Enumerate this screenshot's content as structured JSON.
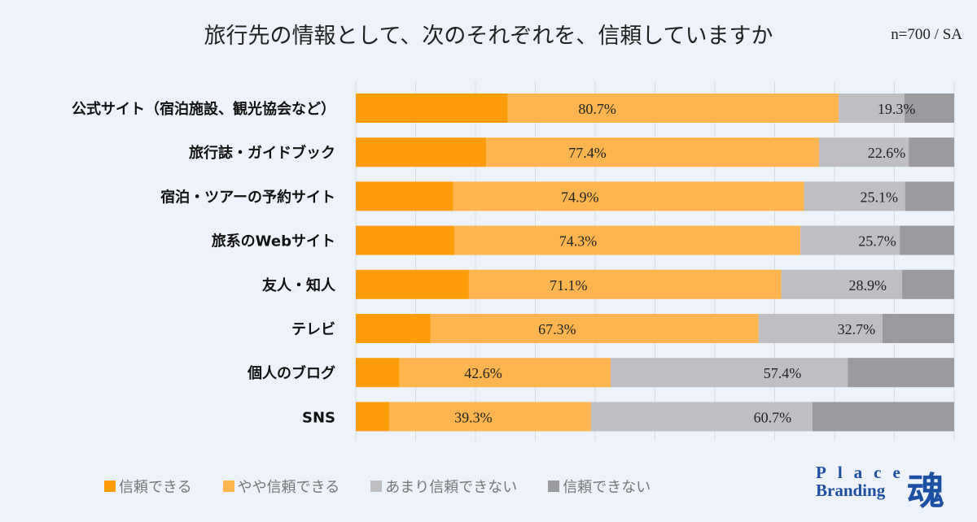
{
  "chart_data": {
    "type": "bar",
    "orientation": "horizontal",
    "stacked": true,
    "title": "旅行先の情報として、次のそれぞれを、信頼していますか",
    "note": "n=700 / SA",
    "categories": [
      "公式サイト（宿泊施設、観光協会など）",
      "旅行誌・ガイドブック",
      "宿泊・ツアーの予約サイト",
      "旅系のWebサイト",
      "友人・知人",
      "テレビ",
      "個人のブログ",
      "SNS"
    ],
    "series": [
      {
        "name": "信頼できる",
        "color": "#ff9c0a",
        "values": [
          25.4,
          21.8,
          16.3,
          16.5,
          18.9,
          12.5,
          7.3,
          5.6
        ]
      },
      {
        "name": "やや信頼できる",
        "color": "#ffb54f",
        "values": [
          55.3,
          55.6,
          58.6,
          57.8,
          52.2,
          54.8,
          35.3,
          33.7
        ]
      },
      {
        "name": "あまり信頼できない",
        "color": "#bfbec3",
        "values": [
          11.0,
          15.0,
          16.9,
          16.6,
          20.2,
          20.7,
          39.6,
          37.0
        ]
      },
      {
        "name": "信頼できない",
        "color": "#9b9a9f",
        "values": [
          8.3,
          7.6,
          8.2,
          9.1,
          8.7,
          12.0,
          17.8,
          23.7
        ]
      }
    ],
    "data_labels_trust": [
      "80.7%",
      "77.4%",
      "74.9%",
      "74.3%",
      "71.1%",
      "67.3%",
      "42.6%",
      "39.3%"
    ],
    "data_labels_distrust": [
      "19.3%",
      "22.6%",
      "25.1%",
      "25.7%",
      "28.9%",
      "32.7%",
      "57.4%",
      "60.7%"
    ],
    "xlim": [
      0,
      100
    ],
    "grid": true,
    "legend": "bottom"
  },
  "logo": {
    "line1": "Place",
    "line2": "Branding",
    "kanji": "魂"
  }
}
